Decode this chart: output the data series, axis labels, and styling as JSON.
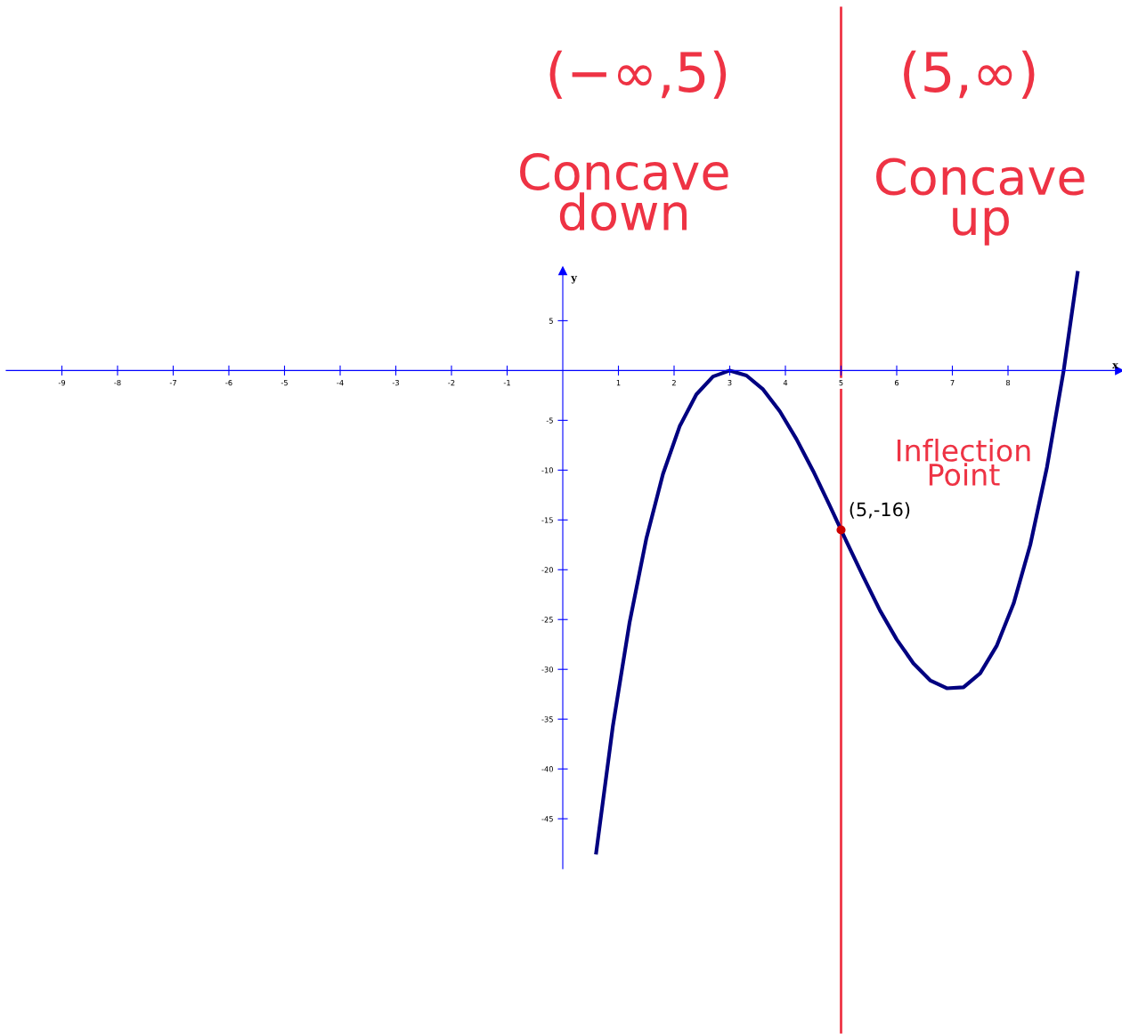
{
  "chart_data": {
    "type": "line",
    "xlim": [
      -10,
      10
    ],
    "ylim": [
      -50,
      10
    ],
    "xticks": [
      -9,
      -8,
      -7,
      -6,
      -5,
      -4,
      -3,
      -2,
      -1,
      1,
      2,
      3,
      4,
      5,
      6,
      7,
      8
    ],
    "yticks": [
      5,
      -5,
      -10,
      -15,
      -20,
      -25,
      -30,
      -35,
      -40,
      -45
    ],
    "xlabel": "x",
    "ylabel": "y",
    "grid": false,
    "series": [
      {
        "color": "#000080",
        "x": [
          0.6,
          0.9,
          1.2,
          1.5,
          1.8,
          2.1,
          2.4,
          2.7,
          3.0,
          3.3,
          3.6,
          3.9,
          4.2,
          4.5,
          4.8,
          5.1,
          5.4,
          5.7,
          6.0,
          6.3,
          6.6,
          6.9,
          7.2,
          7.5,
          7.8,
          8.1,
          8.4,
          8.7,
          9.0,
          9.25
        ],
        "values": [
          -48.4,
          -35.7,
          -25.3,
          -16.9,
          -10.4,
          -5.6,
          -2.4,
          -0.6,
          0,
          -0.5,
          -1.9,
          -4.1,
          -6.9,
          -10.1,
          -13.6,
          -17.2,
          -20.7,
          -24.1,
          -27,
          -29.4,
          -31.1,
          -31.9,
          -31.8,
          -30.4,
          -27.6,
          -23.4,
          -17.5,
          -9.7,
          0,
          9.8
        ]
      },
      {
        "type": "scatter",
        "color": "#cc0000",
        "x": [
          5
        ],
        "values": [
          -16
        ]
      }
    ],
    "ref_lines": [
      {
        "axis": "x",
        "value": 5,
        "color": "#ee3344"
      }
    ],
    "annotations": [
      {
        "text": "(5,-16)",
        "x": 5,
        "y": -16
      },
      "(−∞,5)",
      "Concave\ndown",
      "(5,∞)",
      "Concave\nup",
      "Inflection\nPoint"
    ]
  }
}
